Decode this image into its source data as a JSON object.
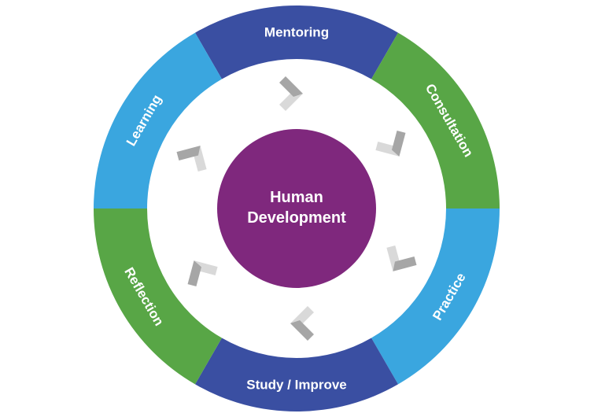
{
  "center": {
    "line1": "Human",
    "line2": "Development",
    "color": "#7f287d"
  },
  "segments": [
    {
      "id": "mentoring",
      "label": "Mentoring",
      "color": "#3a4fa2"
    },
    {
      "id": "consultation",
      "label": "Consultation",
      "color": "#58a646"
    },
    {
      "id": "practice",
      "label": "Practice",
      "color": "#3aa6df"
    },
    {
      "id": "study-improve",
      "label": "Study / Improve",
      "color": "#3a4fa2"
    },
    {
      "id": "reflection",
      "label": "Reflection",
      "color": "#58a646"
    },
    {
      "id": "learning",
      "label": "Learning",
      "color": "#3aa6df"
    }
  ],
  "arrow_icons": [
    {
      "id": "arrow-top",
      "icon": "chevron-down-icon"
    },
    {
      "id": "arrow-upper-right",
      "icon": "chevron-icon"
    },
    {
      "id": "arrow-lower-right",
      "icon": "chevron-icon"
    },
    {
      "id": "arrow-bottom",
      "icon": "chevron-up-icon"
    },
    {
      "id": "arrow-lower-left",
      "icon": "chevron-icon"
    },
    {
      "id": "arrow-upper-left",
      "icon": "chevron-icon"
    }
  ],
  "arrow_colors": {
    "dark": "#a6a6a6",
    "light": "#d9d9d9"
  }
}
